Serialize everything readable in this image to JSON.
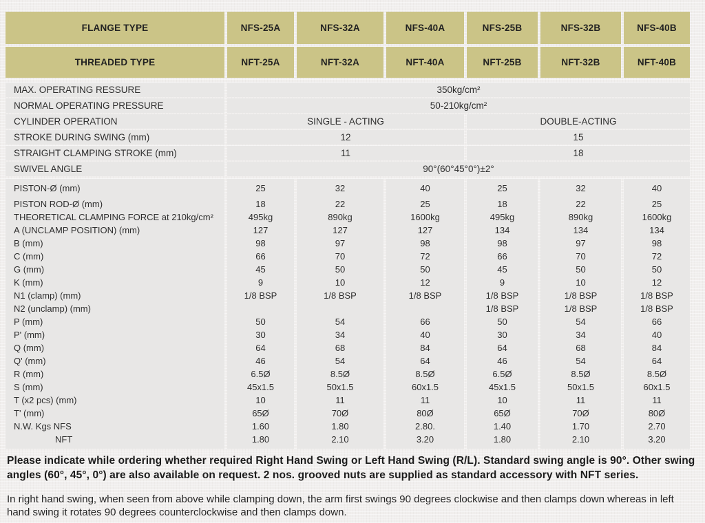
{
  "table": {
    "header": {
      "flange_label": "FLANGE TYPE",
      "threaded_label": "THREADED TYPE",
      "flange_models": [
        "NFS-25A",
        "NFS-32A",
        "NFS-40A",
        "NFS-25B",
        "NFS-32B",
        "NFS-40B"
      ],
      "threaded_models": [
        "NFT-25A",
        "NFT-32A",
        "NFT-40A",
        "NFT-25B",
        "NFT-32B",
        "NFT-40B"
      ]
    },
    "info_rows": [
      {
        "label": "MAX. OPERATING RESSURE",
        "type": "full",
        "value": "350kg/cm²"
      },
      {
        "label": "NORMAL OPERATING PRESSURE",
        "type": "full",
        "value": "50-210kg/cm²"
      },
      {
        "label": "CYLINDER OPERATION",
        "type": "split",
        "left": "SINGLE - ACTING",
        "right": "DOUBLE-ACTING"
      },
      {
        "label": "STROKE DURING SWING (mm)",
        "type": "split",
        "left": "12",
        "right": "15"
      },
      {
        "label": "STRAIGHT CLAMPING STROKE (mm)",
        "type": "split",
        "left": "11",
        "right": "18"
      },
      {
        "label": "SWIVEL ANGLE",
        "type": "full",
        "value": "90°(60°45°0°)±2°"
      }
    ],
    "spec_rows": [
      {
        "label": "PISTON-Ø (mm)",
        "indent": false,
        "values": [
          "25",
          "32",
          "40",
          "25",
          "32",
          "40"
        ]
      },
      {
        "label": "PISTON ROD-Ø (mm)",
        "indent": false,
        "values": [
          "18",
          "22",
          "25",
          "18",
          "22",
          "25"
        ]
      },
      {
        "label": "THEORETICAL CLAMPING FORCE at 210kg/cm²",
        "indent": false,
        "values": [
          "495kg",
          "890kg",
          "1600kg",
          "495kg",
          "890kg",
          "1600kg"
        ]
      },
      {
        "label": "A (UNCLAMP POSITION) (mm)",
        "indent": false,
        "values": [
          "127",
          "127",
          "127",
          "134",
          "134",
          "134"
        ]
      },
      {
        "label": "B (mm)",
        "indent": false,
        "values": [
          "98",
          "97",
          "98",
          "98",
          "97",
          "98"
        ]
      },
      {
        "label": "C (mm)",
        "indent": false,
        "values": [
          "66",
          "70",
          "72",
          "66",
          "70",
          "72"
        ]
      },
      {
        "label": "G (mm)",
        "indent": false,
        "values": [
          "45",
          "50",
          "50",
          "45",
          "50",
          "50"
        ]
      },
      {
        "label": "K (mm)",
        "indent": false,
        "values": [
          "9",
          "10",
          "12",
          "9",
          "10",
          "12"
        ]
      },
      {
        "label": "N1 (clamp) (mm)",
        "indent": false,
        "values": [
          "1/8 BSP",
          "1/8 BSP",
          "1/8 BSP",
          "1/8 BSP",
          "1/8 BSP",
          "1/8 BSP"
        ]
      },
      {
        "label": "N2 (unclamp) (mm)",
        "indent": false,
        "values": [
          "",
          "",
          "",
          "1/8 BSP",
          "1/8 BSP",
          "1/8 BSP"
        ]
      },
      {
        "label": "P (mm)",
        "indent": false,
        "values": [
          "50",
          "54",
          "66",
          "50",
          "54",
          "66"
        ]
      },
      {
        "label": "P' (mm)",
        "indent": false,
        "values": [
          "30",
          "34",
          "40",
          "30",
          "34",
          "40"
        ]
      },
      {
        "label": "Q (mm)",
        "indent": false,
        "values": [
          "64",
          "68",
          "84",
          "64",
          "68",
          "84"
        ]
      },
      {
        "label": "Q' (mm)",
        "indent": false,
        "values": [
          "46",
          "54",
          "64",
          "46",
          "54",
          "64"
        ]
      },
      {
        "label": "R (mm)",
        "indent": false,
        "values": [
          "6.5Ø",
          "8.5Ø",
          "8.5Ø",
          "6.5Ø",
          "8.5Ø",
          "8.5Ø"
        ]
      },
      {
        "label": "S (mm)",
        "indent": false,
        "values": [
          "45x1.5",
          "50x1.5",
          "60x1.5",
          "45x1.5",
          "50x1.5",
          "60x1.5"
        ]
      },
      {
        "label": "T (x2 pcs) (mm)",
        "indent": false,
        "values": [
          "10",
          "11",
          "11",
          "10",
          "11",
          "11"
        ]
      },
      {
        "label": "T' (mm)",
        "indent": false,
        "values": [
          "65Ø",
          "70Ø",
          "80Ø",
          "65Ø",
          "70Ø",
          "80Ø"
        ]
      },
      {
        "label": "N.W. Kgs NFS",
        "indent": false,
        "values": [
          "1.60",
          "1.80",
          "2.80.",
          "1.40",
          "1.70",
          "2.70"
        ]
      },
      {
        "label": "NFT",
        "indent": true,
        "values": [
          "1.80",
          "2.10",
          "3.20",
          "1.80",
          "2.10",
          "3.20"
        ]
      }
    ]
  },
  "notes": {
    "bold_note": "Please indicate while ordering whether required Right Hand Swing or Left Hand Swing (R/L). Standard swing angle is 90°. Other swing angles (60°, 45°, 0°) are also available on request. 2 nos. grooved nuts are supplied as standard accessory with NFT series.",
    "plain_note": "In right hand swing, when seen from above while clamping down, the arm first swings 90 degrees clockwise and then clamps down whereas in left hand swing it rotates 90 degrees counterclockwise and then clamps down."
  },
  "colors": {
    "header_bg": "#cbc487",
    "row_bg": "#e8e7e6",
    "page_bg": "#f1efee",
    "text": "#2e2e2e"
  }
}
